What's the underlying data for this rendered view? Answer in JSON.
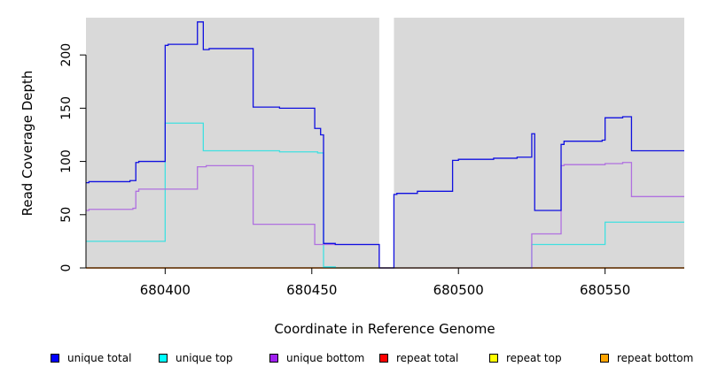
{
  "chart_data": {
    "type": "line",
    "title": "",
    "xlabel": "Coordinate in Reference Genome",
    "ylabel": "Read Coverage Depth",
    "xlim": [
      680373,
      680577
    ],
    "ylim": [
      0,
      235
    ],
    "xticks": [
      680400,
      680450,
      680500,
      680550
    ],
    "yticks": [
      0,
      50,
      100,
      150,
      200
    ],
    "grid": false,
    "panel_background": "#d9d9d9",
    "missing_region": [
      680473,
      680478
    ],
    "legend_position": "bottom",
    "series": [
      {
        "name": "unique total",
        "color": "#1010e0",
        "steps": [
          [
            680373,
            80
          ],
          [
            680374,
            81
          ],
          [
            680388,
            82
          ],
          [
            680390,
            99
          ],
          [
            680391,
            100
          ],
          [
            680400,
            209
          ],
          [
            680401,
            210
          ],
          [
            680411,
            231
          ],
          [
            680413,
            205
          ],
          [
            680415,
            206
          ],
          [
            680430,
            151
          ],
          [
            680439,
            150
          ],
          [
            680451,
            131
          ],
          [
            680453,
            125
          ],
          [
            680454,
            23
          ],
          [
            680458,
            22
          ],
          [
            680473,
            0
          ],
          [
            680478,
            69
          ],
          [
            680479,
            70
          ],
          [
            680486,
            72
          ],
          [
            680498,
            101
          ],
          [
            680499,
            101
          ],
          [
            680500,
            102
          ],
          [
            680512,
            103
          ],
          [
            680520,
            104
          ],
          [
            680525,
            126
          ],
          [
            680526,
            54
          ],
          [
            680535,
            116
          ],
          [
            680536,
            119
          ],
          [
            680549,
            120
          ],
          [
            680550,
            141
          ],
          [
            680556,
            142
          ],
          [
            680559,
            110
          ],
          [
            680577,
            110
          ]
        ]
      },
      {
        "name": "unique top",
        "color": "#40e0e0",
        "steps": [
          [
            680373,
            25
          ],
          [
            680400,
            136
          ],
          [
            680413,
            110
          ],
          [
            680439,
            109
          ],
          [
            680452,
            108
          ],
          [
            680454,
            1
          ],
          [
            680458,
            0
          ],
          [
            680473,
            0
          ],
          [
            680478,
            0
          ],
          [
            680525,
            22
          ],
          [
            680550,
            43
          ],
          [
            680577,
            43
          ]
        ]
      },
      {
        "name": "unique bottom",
        "color": "#b070e0",
        "steps": [
          [
            680373,
            54
          ],
          [
            680374,
            55
          ],
          [
            680389,
            56
          ],
          [
            680390,
            72
          ],
          [
            680391,
            74
          ],
          [
            680411,
            95
          ],
          [
            680414,
            96
          ],
          [
            680430,
            41
          ],
          [
            680451,
            22
          ],
          [
            680454,
            22
          ],
          [
            680473,
            0
          ],
          [
            680478,
            0
          ],
          [
            680525,
            32
          ],
          [
            680535,
            96
          ],
          [
            680536,
            97
          ],
          [
            680550,
            98
          ],
          [
            680556,
            99
          ],
          [
            680559,
            67
          ],
          [
            680577,
            67
          ]
        ]
      },
      {
        "name": "repeat total",
        "color": "#ff0000",
        "steps": [
          [
            680373,
            0
          ],
          [
            680577,
            0
          ]
        ]
      },
      {
        "name": "repeat top",
        "color": "#ffff00",
        "steps": [
          [
            680373,
            0
          ],
          [
            680577,
            0
          ]
        ]
      },
      {
        "name": "repeat bottom",
        "color": "#ffa500",
        "steps": [
          [
            680373,
            0
          ],
          [
            680577,
            0
          ]
        ]
      }
    ]
  },
  "legend": [
    {
      "label": "unique total",
      "color": "#0000ff"
    },
    {
      "label": "unique top",
      "color": "#00ffff"
    },
    {
      "label": "unique bottom",
      "color": "#a020f0"
    },
    {
      "label": "repeat total",
      "color": "#ff0000"
    },
    {
      "label": "repeat top",
      "color": "#ffff00"
    },
    {
      "label": "repeat bottom",
      "color": "#ffa500"
    }
  ]
}
